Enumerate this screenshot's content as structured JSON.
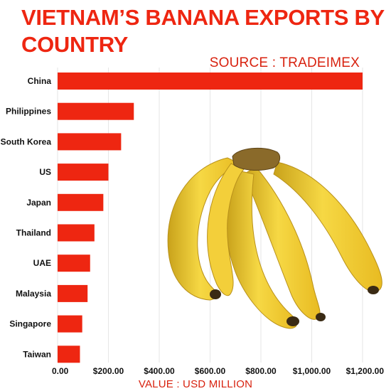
{
  "header": {
    "title": "VIETNAM’S BANANA EXPORTS BY COUNTRY",
    "source": "SOURCE : TRADEIMEX"
  },
  "colors": {
    "accent": "#ee2611",
    "bar": "#ee2611",
    "text": "#111111",
    "grid": "#e6e6e6"
  },
  "decoration": {
    "image": "banana-bunch-photo"
  },
  "chart_data": {
    "type": "bar",
    "orientation": "horizontal",
    "categories": [
      "China",
      "Philippines",
      "South Korea",
      "US",
      "Japan",
      "Thailand",
      "UAE",
      "Malaysia",
      "Singapore",
      "Taiwan"
    ],
    "values": [
      1200,
      300,
      250,
      200,
      180,
      145,
      128,
      118,
      97,
      88
    ],
    "xlim": [
      0,
      1200
    ],
    "xticks": [
      0,
      200,
      400,
      600,
      800,
      1000,
      1200
    ],
    "xtick_labels": [
      "0.00",
      "$200.00",
      "$400.00",
      "$600.00",
      "$800.00",
      "$1,000.00",
      "$1,200.00"
    ],
    "xlabel": "VALUE : USD MILLION",
    "grid": true
  }
}
